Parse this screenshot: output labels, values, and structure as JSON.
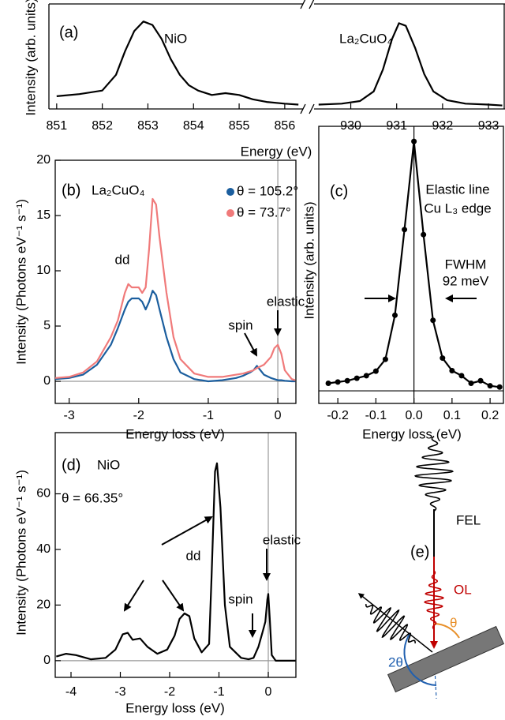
{
  "chart_data": [
    {
      "type": "line",
      "label": "(a)",
      "ylabel": "Intensity (arb. units)",
      "xlabel": "Energy (eV)",
      "ylim": [
        0,
        1.2
      ],
      "broken_axis": true,
      "segments": [
        {
          "xlim": [
            850.83,
            856.4
          ],
          "xticks": [
            851,
            852,
            853,
            854,
            855,
            856
          ],
          "series": [
            {
              "name": "NiO",
              "color": "#000000",
              "x": [
                851,
                851.5,
                852,
                852.3,
                852.5,
                852.7,
                852.9,
                853.1,
                853.3,
                853.5,
                853.7,
                853.9,
                854.1,
                854.4,
                854.7,
                855,
                855.3,
                855.6,
                856,
                856.3
              ],
              "values": [
                0.145,
                0.17,
                0.21,
                0.39,
                0.66,
                0.89,
                1.0,
                0.96,
                0.8,
                0.57,
                0.39,
                0.27,
                0.21,
                0.16,
                0.18,
                0.16,
                0.11,
                0.08,
                0.06,
                0.05
              ]
            }
          ]
        },
        {
          "xlim": [
            929.2,
            933.36
          ],
          "xticks": [
            930,
            931,
            932,
            933
          ],
          "series": [
            {
              "name": "La₂CuO₄",
              "color": "#000000",
              "x": [
                929.3,
                929.8,
                930.2,
                930.5,
                930.7,
                930.9,
                931.05,
                931.2,
                931.4,
                931.6,
                931.8,
                932.1,
                932.5,
                933,
                933.3
              ],
              "values": [
                0.05,
                0.06,
                0.09,
                0.2,
                0.45,
                0.8,
                0.98,
                0.95,
                0.7,
                0.4,
                0.2,
                0.1,
                0.06,
                0.05,
                0.04
              ]
            }
          ]
        }
      ]
    },
    {
      "type": "line",
      "label": "(b)",
      "sample": "La₂CuO₄",
      "ylabel": "Intensity (Photons eV⁻¹ s⁻¹)",
      "xlabel": "Energy loss (eV)",
      "xlim": [
        -3.2,
        0.26
      ],
      "xticks": [
        -3,
        -2,
        -1,
        0
      ],
      "ylim": [
        -2,
        20
      ],
      "yticks": [
        0,
        5,
        10,
        15,
        20
      ],
      "zero_lines": true,
      "zero_line_color": "#999999",
      "legend": "upper right",
      "x": [
        -3.2,
        -3.0,
        -2.8,
        -2.6,
        -2.4,
        -2.3,
        -2.2,
        -2.15,
        -2.1,
        -2.0,
        -1.95,
        -1.9,
        -1.85,
        -1.8,
        -1.75,
        -1.7,
        -1.6,
        -1.5,
        -1.4,
        -1.2,
        -1.0,
        -0.8,
        -0.6,
        -0.5,
        -0.4,
        -0.35,
        -0.3,
        -0.2,
        -0.1,
        -0.05,
        0,
        0.05,
        0.1,
        0.2,
        0.25
      ],
      "series": [
        {
          "name": "θ = 105.2°",
          "color": "#1b5e9e",
          "values": [
            0.2,
            0.3,
            0.6,
            1.5,
            3.3,
            4.8,
            6.5,
            7.2,
            7.5,
            7.5,
            7.2,
            6.5,
            7.2,
            8.2,
            7.8,
            6.5,
            4,
            2,
            0.8,
            0.2,
            0,
            0.1,
            0.3,
            0.5,
            0.8,
            1.0,
            1.4,
            0.6,
            0.3,
            0.2,
            0.1,
            0.1,
            0.05,
            0,
            0
          ]
        },
        {
          "name": "θ = 73.7°",
          "color": "#f07a7a",
          "values": [
            0.3,
            0.4,
            0.8,
            1.8,
            4,
            5.5,
            8,
            8.8,
            8.5,
            8.5,
            8.0,
            8.5,
            12,
            16.5,
            16,
            13,
            8,
            4,
            2,
            0.7,
            0.4,
            0.4,
            0.6,
            0.7,
            0.9,
            1.0,
            1.2,
            1.5,
            2.2,
            3.0,
            3.3,
            2.5,
            1.0,
            0.2,
            0.1
          ]
        }
      ],
      "annotations": [
        "dd",
        "spin",
        "elastic"
      ]
    },
    {
      "type": "line",
      "label": "(c)",
      "markers": true,
      "ylabel": "Intensity (arb. units)",
      "xlabel": "Energy loss (eV)",
      "xlim": [
        -0.25,
        0.235
      ],
      "xticks": [
        -0.2,
        -0.1,
        {
          "value": 0,
          "label": "0.0"
        },
        0.1,
        0.2
      ],
      "ylim": [
        -0.05,
        1.05
      ],
      "zero_lines": true,
      "zero_line_color": "#000000",
      "x": [
        -0.225,
        -0.2,
        -0.175,
        -0.15,
        -0.125,
        -0.1,
        -0.075,
        -0.05,
        -0.025,
        0,
        0.025,
        0.05,
        0.075,
        0.1,
        0.125,
        0.15,
        0.175,
        0.2,
        0.225
      ],
      "series": [
        {
          "color": "#000000",
          "values": [
            0.03,
            0.035,
            0.04,
            0.05,
            0.06,
            0.078,
            0.125,
            0.3,
            0.64,
            0.99,
            0.62,
            0.28,
            0.13,
            0.08,
            0.06,
            0.03,
            0.04,
            0.02,
            0.015
          ]
        }
      ],
      "annotations": [
        "Elastic line",
        "Cu L₃ edge",
        "FWHM",
        "92 meV"
      ]
    },
    {
      "type": "line",
      "label": "(d)",
      "sample": "NiO",
      "condition": "θ = 66.35°",
      "ylabel": "Intensity (Photons eV⁻¹ s⁻¹)",
      "xlabel": "Energy loss (eV)",
      "xlim": [
        -4.32,
        0.56
      ],
      "xticks": [
        -4,
        -3,
        -2,
        -1,
        0
      ],
      "ylim": [
        -6,
        82
      ],
      "yticks": [
        0,
        20,
        40,
        60
      ],
      "zero_lines": true,
      "zero_line_color": "#999999",
      "x": [
        -4.3,
        -4.1,
        -3.9,
        -3.6,
        -3.3,
        -3.1,
        -2.95,
        -2.85,
        -2.75,
        -2.6,
        -2.45,
        -2.25,
        -2.05,
        -1.9,
        -1.8,
        -1.7,
        -1.6,
        -1.5,
        -1.35,
        -1.2,
        -1.15,
        -1.08,
        -1.04,
        -0.97,
        -0.88,
        -0.78,
        -0.55,
        -0.4,
        -0.3,
        -0.2,
        -0.12,
        -0.06,
        -0.02,
        0,
        0.03,
        0.07,
        0.15,
        0.3,
        0.55
      ],
      "series": [
        {
          "color": "#000000",
          "values": [
            1.5,
            2.5,
            2,
            0.5,
            1,
            4,
            9.5,
            10,
            7.5,
            8,
            5,
            2.5,
            4,
            9,
            15,
            17,
            16,
            8,
            3,
            6,
            30,
            68,
            71,
            55,
            20,
            5,
            1,
            0.5,
            1,
            5,
            10,
            14,
            22,
            24,
            15,
            2,
            0,
            0,
            0
          ]
        }
      ],
      "annotations": [
        "dd",
        "spin",
        "elastic"
      ]
    }
  ],
  "diagram": {
    "label": "(e)",
    "beams": [
      "FEL",
      "OL"
    ],
    "angles": [
      "θ",
      "2θ"
    ]
  }
}
